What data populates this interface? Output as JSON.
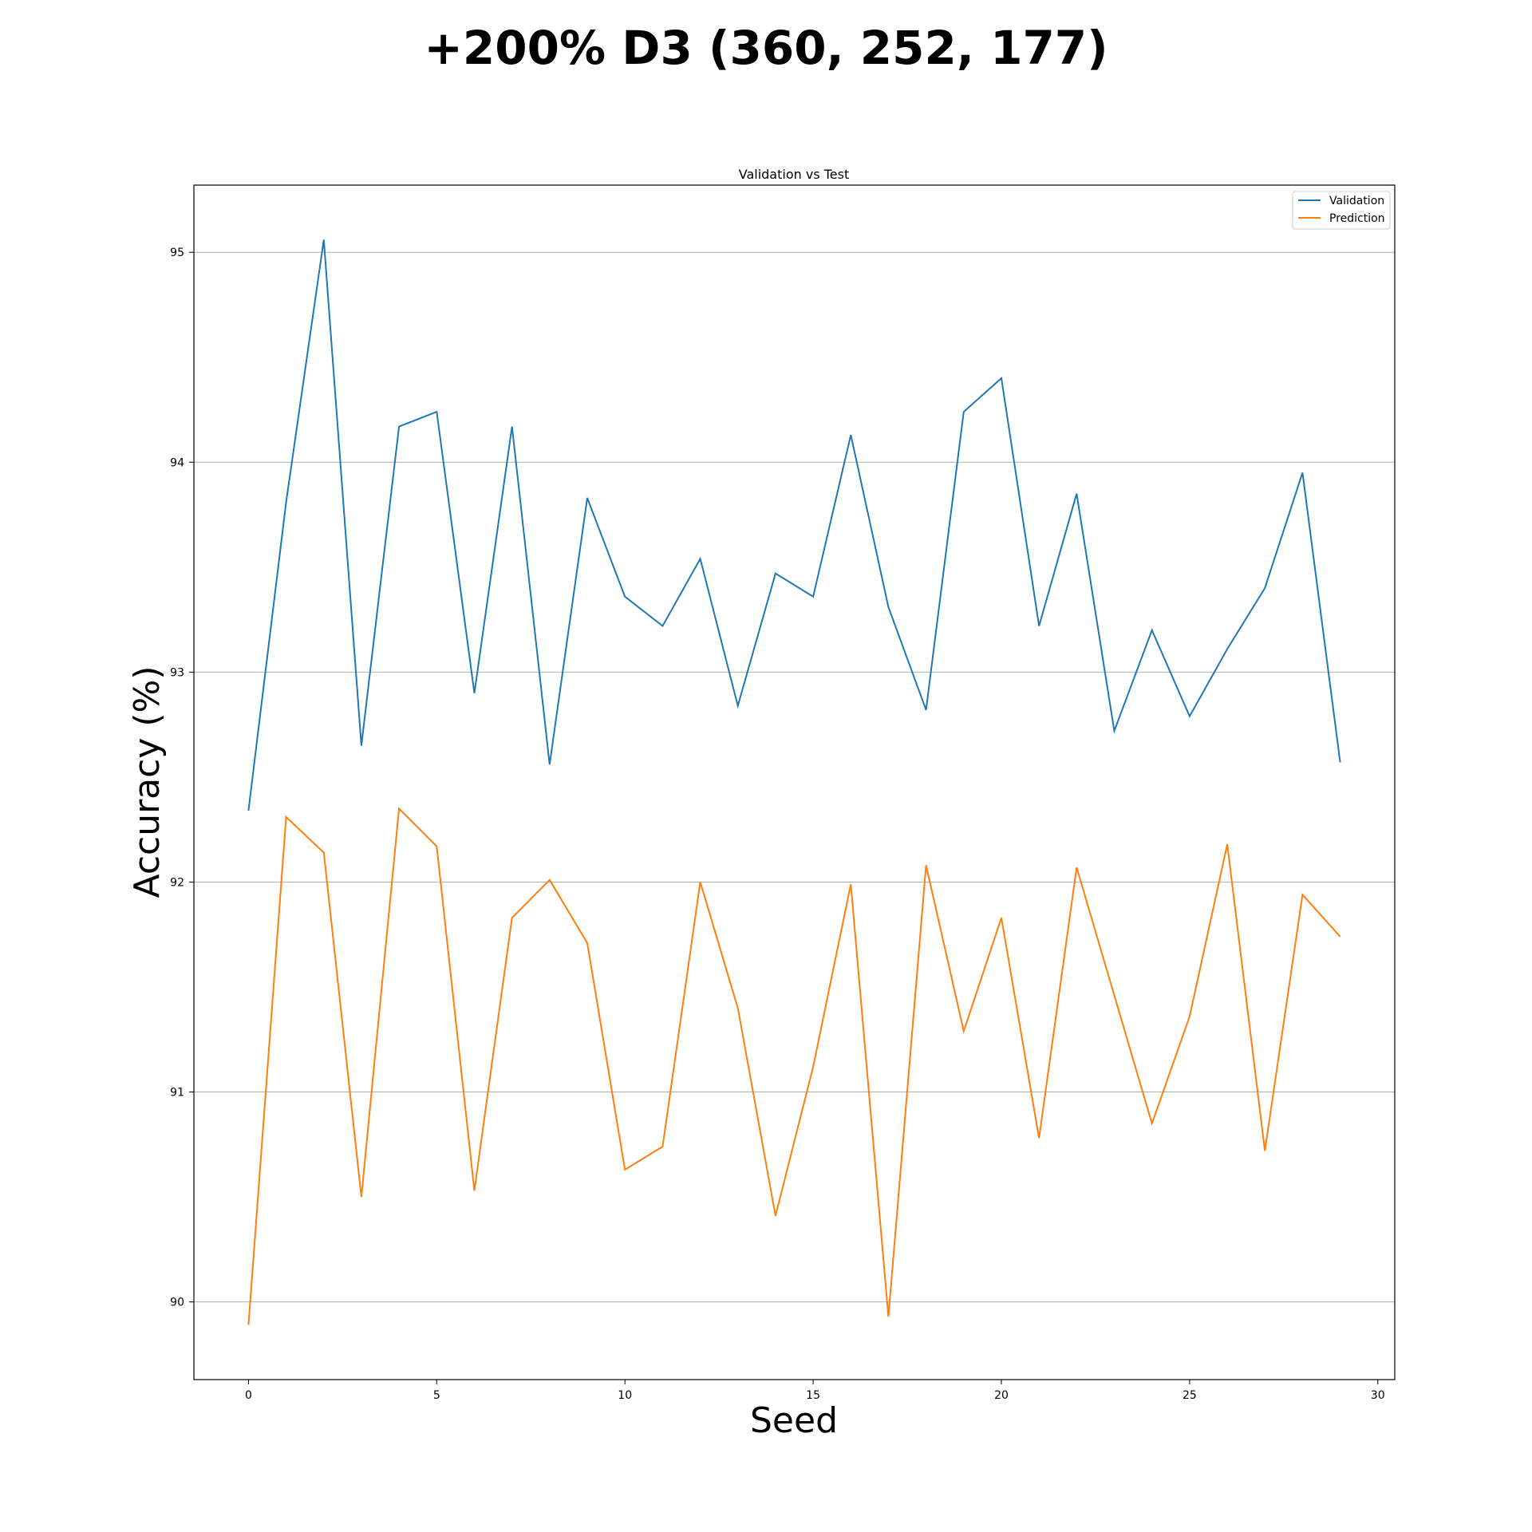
{
  "figure": {
    "suptitle": "+200% D3 (360, 252, 177)"
  },
  "chart_data": {
    "type": "line",
    "title": "Validation vs Test",
    "xlabel": "Seed",
    "ylabel": "Accuracy (%)",
    "xlim": [
      -1.45,
      30.45
    ],
    "ylim": [
      89.63,
      95.32
    ],
    "x_ticks": [
      0,
      5,
      10,
      15,
      20,
      25,
      30
    ],
    "y_ticks": [
      90,
      91,
      92,
      93,
      94,
      95
    ],
    "grid": "y",
    "legend": "top-right",
    "x": [
      0,
      1,
      2,
      3,
      4,
      5,
      6,
      7,
      8,
      9,
      10,
      11,
      12,
      13,
      14,
      15,
      16,
      17,
      18,
      19,
      20,
      21,
      22,
      23,
      24,
      25,
      26,
      27,
      28,
      29
    ],
    "series": [
      {
        "name": "Validation",
        "color": "#1f77b4",
        "values": [
          92.34,
          93.81,
          95.06,
          92.65,
          94.17,
          94.24,
          92.9,
          94.17,
          92.56,
          93.83,
          93.36,
          93.22,
          93.54,
          92.84,
          93.47,
          93.36,
          94.13,
          93.31,
          92.82,
          94.24,
          94.4,
          93.22,
          93.85,
          92.72,
          93.2,
          92.79,
          93.11,
          93.4,
          93.95,
          92.57
        ]
      },
      {
        "name": "Prediction",
        "color": "#ff7f0e",
        "values": [
          89.89,
          92.31,
          92.14,
          90.5,
          92.35,
          92.17,
          90.53,
          91.83,
          92.01,
          91.71,
          90.63,
          90.74,
          92.0,
          91.4,
          90.41,
          91.12,
          91.99,
          89.93,
          92.08,
          91.29,
          91.83,
          90.78,
          92.07,
          91.46,
          90.85,
          91.36,
          92.18,
          90.72,
          91.94,
          91.74
        ]
      }
    ]
  }
}
